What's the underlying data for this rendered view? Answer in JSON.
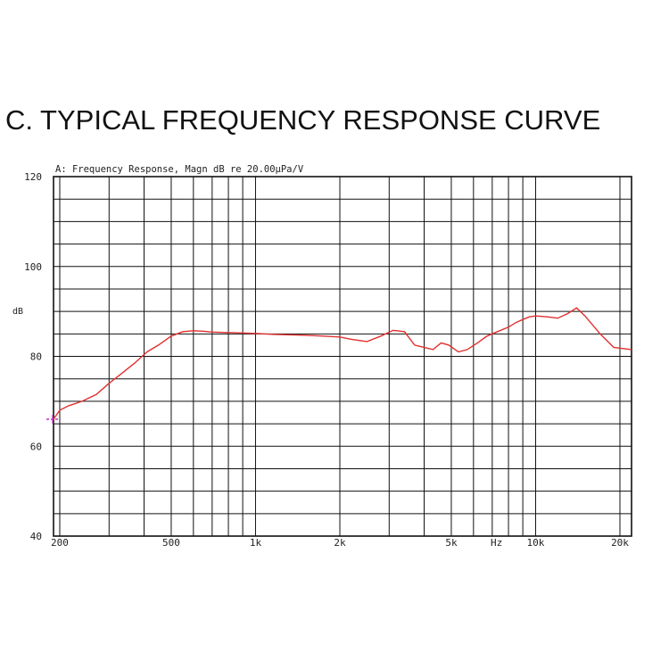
{
  "page": {
    "title": "C. TYPICAL FREQUENCY RESPONSE CURVE"
  },
  "chart_data": {
    "type": "line",
    "title": "A: Frequency Response, Magn dB re 20.00µPa/V",
    "xlabel": "Hz",
    "ylabel": "dB",
    "xscale": "log",
    "xlim": [
      190,
      22000
    ],
    "ylim": [
      40,
      120
    ],
    "grid": true,
    "colors": {
      "curve": "#e03030",
      "grid": "#111111",
      "marker": "#c030c0"
    },
    "x_tick_labels": [
      {
        "value": 200,
        "label": "200"
      },
      {
        "value": 500,
        "label": "500"
      },
      {
        "value": 1000,
        "label": "1k"
      },
      {
        "value": 2000,
        "label": "2k"
      },
      {
        "value": 5000,
        "label": "5k"
      },
      {
        "value": 10000,
        "label": "10k"
      },
      {
        "value": 20000,
        "label": "20k"
      }
    ],
    "y_tick_labels": [
      {
        "value": 120,
        "label": "120"
      },
      {
        "value": 100,
        "label": "100"
      },
      {
        "value": 80,
        "label": "80"
      },
      {
        "value": 60,
        "label": "60"
      },
      {
        "value": 40,
        "label": "40"
      }
    ],
    "series": [
      {
        "x": [
          190,
          200,
          215,
          240,
          270,
          300,
          330,
          370,
          410,
          450,
          500,
          550,
          600,
          650,
          700,
          800,
          900,
          1000,
          1150,
          1300,
          1500,
          1750,
          2000,
          2200,
          2500,
          2800,
          3100,
          3400,
          3700,
          4000,
          4300,
          4600,
          4900,
          5300,
          5700,
          6200,
          6700,
          7300,
          8000,
          8500,
          9000,
          9500,
          10000,
          11000,
          12000,
          13000,
          14000,
          15000,
          17000,
          19000,
          22000
        ],
        "y": [
          66,
          68,
          69,
          70,
          71.5,
          74,
          76,
          78.5,
          81,
          82.5,
          84.5,
          85.5,
          85.7,
          85.6,
          85.4,
          85.3,
          85.2,
          85.1,
          84.9,
          84.8,
          84.7,
          84.5,
          84.3,
          83.8,
          83.3,
          84.5,
          85.8,
          85.5,
          82.5,
          82,
          81.5,
          83,
          82.5,
          81,
          81.5,
          83,
          84.5,
          85.5,
          86.5,
          87.5,
          88.2,
          88.8,
          89,
          88.8,
          88.5,
          89.5,
          90.8,
          89,
          85,
          82,
          81.5
        ]
      }
    ]
  }
}
